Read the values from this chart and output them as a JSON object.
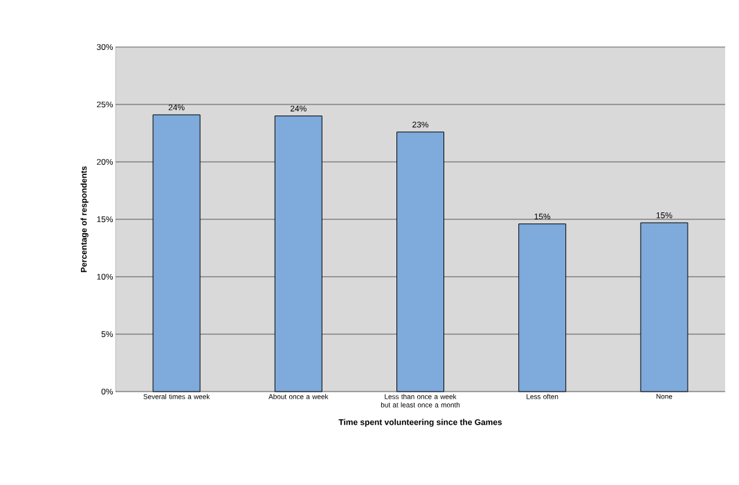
{
  "chart_data": {
    "type": "bar",
    "xlabel": "Time spent volunteering since the Games",
    "ylabel": "Percentage of respondents",
    "categories": [
      "Several times a week",
      "About once a week",
      "Less than once a week but at least once a month",
      "Less often",
      "None"
    ],
    "values": [
      24.1,
      24.0,
      22.6,
      14.6,
      14.7
    ],
    "value_labels": [
      "24%",
      "24%",
      "23%",
      "15%",
      "15%"
    ],
    "color": "#7eaadc",
    "ylim": [
      0,
      30
    ],
    "yticks": [
      {
        "value": 0,
        "label": "0%"
      },
      {
        "value": 5,
        "label": "5%"
      },
      {
        "value": 10,
        "label": "10%"
      },
      {
        "value": 15,
        "label": "15%"
      },
      {
        "value": 20,
        "label": "20%"
      },
      {
        "value": 25,
        "label": "25%"
      },
      {
        "value": 30,
        "label": "30%"
      }
    ],
    "grid": "y"
  }
}
